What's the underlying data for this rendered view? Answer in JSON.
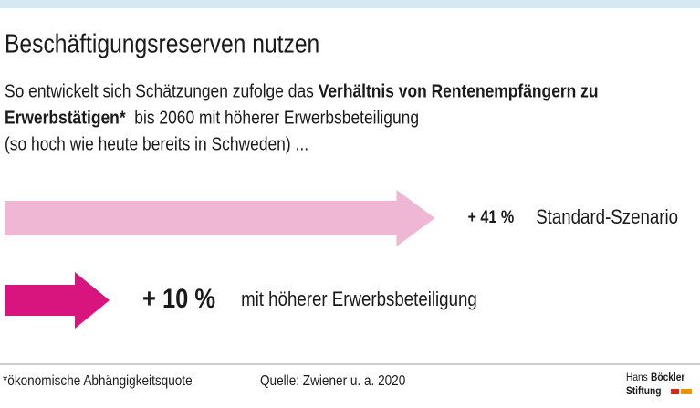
{
  "chart_data": {
    "type": "arrow",
    "title": "Beschäftigungsreserven nutzen",
    "subtitle": [
      [
        {
          "text": "So entwickelt sich Schätzungen zufolge das ",
          "bold": false
        },
        {
          "text": "Verhältnis von Rentenempfängern zu",
          "bold": true
        }
      ],
      [
        {
          "text": "Erwerbstätigen*",
          "bold": true
        },
        {
          "text": "  bis 2060 mit höherer Erwerbsbeteiligung",
          "bold": false
        }
      ],
      [
        {
          "text": "(so hoch wie heute bereits in Schweden) ...",
          "bold": false
        }
      ]
    ],
    "categories": [
      "Standard-Szenario",
      "mit höherer Erwerbsbeteiligung"
    ],
    "values": [
      41,
      10
    ],
    "value_labels": [
      "+ 41 %",
      "+ 10 %"
    ],
    "colors": [
      "#efb7d4",
      "#d8147f"
    ],
    "footnote": "*ökonomische Abhängigkeitsquote",
    "source": "Quelle: Zwiener u. a. 2020",
    "logo": [
      "Hans",
      "Böckler",
      "Stiftung"
    ]
  }
}
